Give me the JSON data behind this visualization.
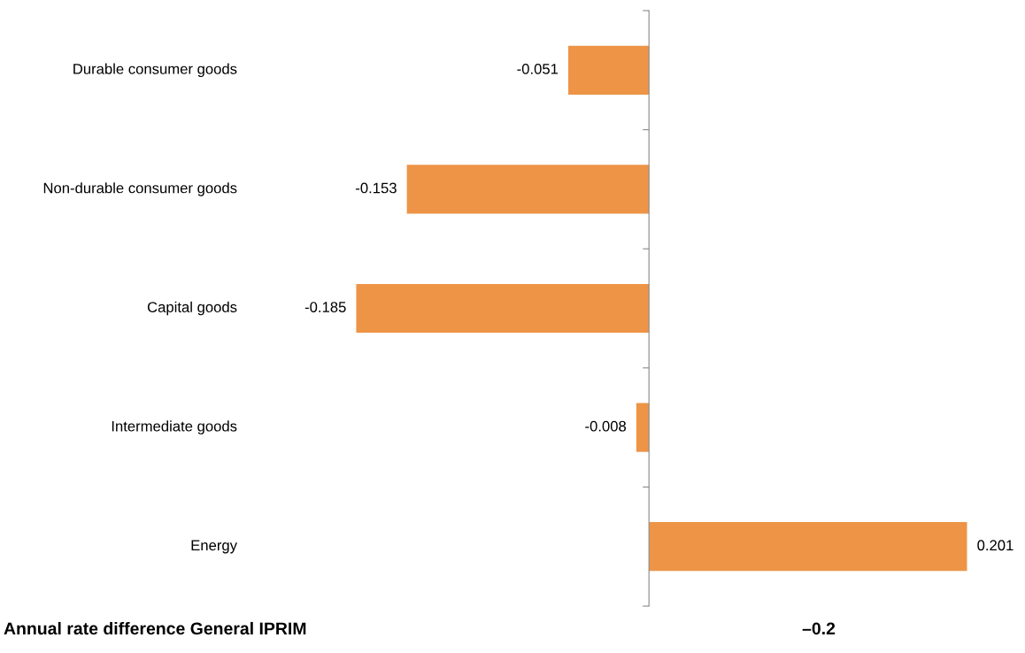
{
  "chart_data": {
    "type": "bar",
    "orientation": "horizontal",
    "categories": [
      "Durable consumer goods",
      "Non-durable consumer goods",
      "Capital goods",
      "Intermediate goods",
      "Energy"
    ],
    "values": [
      -0.051,
      -0.153,
      -0.185,
      -0.008,
      0.201
    ],
    "color": "#ed9447",
    "data_labels": true,
    "grid": false,
    "legend": false,
    "annotations": [
      "Annual rate difference General IPRIM",
      "–0.2"
    ]
  }
}
